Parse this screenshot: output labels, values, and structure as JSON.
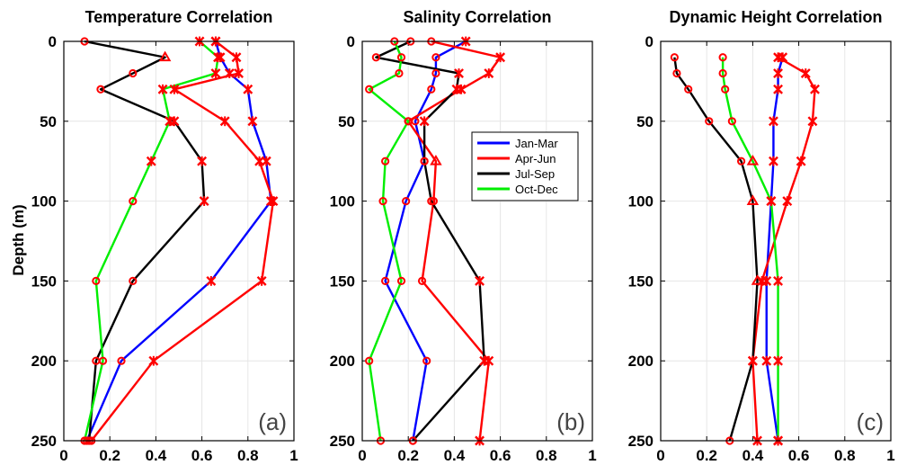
{
  "ylabel": "Depth (m)",
  "marker_legend_note": "",
  "chart_data": [
    {
      "type": "line",
      "title": "Temperature Correlation",
      "panel_label": "(a)",
      "xlim": [
        0,
        1
      ],
      "ylim": [
        250,
        0
      ],
      "xticks": [
        "0",
        "0.2",
        "0.4",
        "0.6",
        "0.8",
        "1"
      ],
      "yticks": [
        "0",
        "50",
        "100",
        "150",
        "200",
        "250"
      ],
      "ytick_values": [
        0,
        50,
        100,
        150,
        200,
        250
      ],
      "xtick_values": [
        0,
        0.2,
        0.4,
        0.6,
        0.8,
        1
      ],
      "grid": true,
      "series": [
        {
          "name": "Jan-Mar",
          "color": "#0000ff",
          "points": [
            [
              0.66,
              0,
              "x"
            ],
            [
              0.68,
              10,
              "x"
            ],
            [
              0.72,
              20,
              "x"
            ],
            [
              0.8,
              30,
              "x"
            ],
            [
              0.82,
              50,
              "x"
            ],
            [
              0.88,
              75,
              "x"
            ],
            [
              0.9,
              100,
              "x"
            ],
            [
              0.64,
              150,
              "x"
            ],
            [
              0.25,
              200,
              "o"
            ],
            [
              0.1,
              250,
              "o"
            ]
          ]
        },
        {
          "name": "Apr-Jun",
          "color": "#ff0000",
          "points": [
            [
              0.66,
              0,
              "x"
            ],
            [
              0.75,
              10,
              "x"
            ],
            [
              0.76,
              20,
              "x"
            ],
            [
              0.48,
              30,
              "x"
            ],
            [
              0.7,
              50,
              "x"
            ],
            [
              0.85,
              75,
              "x"
            ],
            [
              0.91,
              100,
              "x"
            ],
            [
              0.86,
              150,
              "x"
            ],
            [
              0.39,
              200,
              "x"
            ],
            [
              0.12,
              250,
              "o"
            ]
          ]
        },
        {
          "name": "Jul-Sep",
          "color": "#000000",
          "points": [
            [
              0.09,
              0,
              "o"
            ],
            [
              0.44,
              10,
              "^"
            ],
            [
              0.3,
              20,
              "o"
            ],
            [
              0.16,
              30,
              "o"
            ],
            [
              0.48,
              50,
              "x"
            ],
            [
              0.6,
              75,
              "x"
            ],
            [
              0.61,
              100,
              "x"
            ],
            [
              0.3,
              150,
              "o"
            ],
            [
              0.14,
              200,
              "o"
            ],
            [
              0.11,
              250,
              "o"
            ]
          ]
        },
        {
          "name": "Oct-Dec",
          "color": "#00ee00",
          "points": [
            [
              0.59,
              0,
              "x"
            ],
            [
              0.67,
              10,
              "x"
            ],
            [
              0.66,
              20,
              "x"
            ],
            [
              0.43,
              30,
              "x"
            ],
            [
              0.46,
              50,
              "x"
            ],
            [
              0.38,
              75,
              "x"
            ],
            [
              0.3,
              100,
              "o"
            ],
            [
              0.14,
              150,
              "o"
            ],
            [
              0.17,
              200,
              "o"
            ],
            [
              0.09,
              250,
              "o"
            ]
          ]
        }
      ]
    },
    {
      "type": "line",
      "title": "Salinity Correlation",
      "panel_label": "(b)",
      "xlim": [
        0,
        1
      ],
      "ylim": [
        250,
        0
      ],
      "xticks": [
        "0",
        "0.2",
        "0.4",
        "0.6",
        "0.8",
        "1"
      ],
      "yticks": [
        "0",
        "50",
        "100",
        "150",
        "200",
        "250"
      ],
      "ytick_values": [
        0,
        50,
        100,
        150,
        200,
        250
      ],
      "xtick_values": [
        0,
        0.2,
        0.4,
        0.6,
        0.8,
        1
      ],
      "grid": true,
      "legend": {
        "placement": "center-right",
        "entries": [
          "Jan-Mar",
          "Apr-Jun",
          "Jul-Sep",
          "Oct-Dec"
        ]
      },
      "series": [
        {
          "name": "Jan-Mar",
          "color": "#0000ff",
          "points": [
            [
              0.45,
              0,
              "x"
            ],
            [
              0.32,
              10,
              "o"
            ],
            [
              0.32,
              20,
              "o"
            ],
            [
              0.3,
              30,
              "o"
            ],
            [
              0.23,
              50,
              "o"
            ],
            [
              0.27,
              75,
              "o"
            ],
            [
              0.19,
              100,
              "o"
            ],
            [
              0.1,
              150,
              "o"
            ],
            [
              0.28,
              200,
              "o"
            ],
            [
              0.22,
              250,
              "o"
            ]
          ]
        },
        {
          "name": "Apr-Jun",
          "color": "#ff0000",
          "points": [
            [
              0.3,
              0,
              "o"
            ],
            [
              0.6,
              10,
              "x"
            ],
            [
              0.55,
              20,
              "x"
            ],
            [
              0.43,
              30,
              "x"
            ],
            [
              0.2,
              50,
              "o"
            ],
            [
              0.32,
              75,
              "^"
            ],
            [
              0.31,
              100,
              "o"
            ],
            [
              0.26,
              150,
              "o"
            ],
            [
              0.55,
              200,
              "x"
            ],
            [
              0.51,
              250,
              "x"
            ]
          ]
        },
        {
          "name": "Jul-Sep",
          "color": "#000000",
          "points": [
            [
              0.21,
              0,
              "o"
            ],
            [
              0.06,
              10,
              "o"
            ],
            [
              0.42,
              20,
              "x"
            ],
            [
              0.41,
              30,
              "x"
            ],
            [
              0.27,
              50,
              "x"
            ],
            [
              0.27,
              75,
              "o"
            ],
            [
              0.3,
              100,
              "o"
            ],
            [
              0.51,
              150,
              "x"
            ],
            [
              0.53,
              200,
              "x"
            ],
            [
              0.22,
              250,
              "o"
            ]
          ]
        },
        {
          "name": "Oct-Dec",
          "color": "#00ee00",
          "points": [
            [
              0.14,
              0,
              "o"
            ],
            [
              0.17,
              10,
              "o"
            ],
            [
              0.16,
              20,
              "o"
            ],
            [
              0.03,
              30,
              "o"
            ],
            [
              0.2,
              50,
              "o"
            ],
            [
              0.1,
              75,
              "o"
            ],
            [
              0.09,
              100,
              "o"
            ],
            [
              0.17,
              150,
              "o"
            ],
            [
              0.03,
              200,
              "o"
            ],
            [
              0.08,
              250,
              "o"
            ]
          ]
        }
      ]
    },
    {
      "type": "line",
      "title": "Dynamic Height Correlation",
      "panel_label": "(c)",
      "xlim": [
        0,
        1
      ],
      "ylim": [
        250,
        0
      ],
      "xticks": [
        "0",
        "0.2",
        "0.4",
        "0.6",
        "0.8",
        "1"
      ],
      "yticks": [
        "0",
        "50",
        "100",
        "150",
        "200",
        "250"
      ],
      "ytick_values": [
        0,
        50,
        100,
        150,
        200,
        250
      ],
      "xtick_values": [
        0,
        0.2,
        0.4,
        0.6,
        0.8,
        1
      ],
      "grid": true,
      "series": [
        {
          "name": "Jan-Mar",
          "color": "#0000ff",
          "points": [
            [
              0.53,
              10,
              "x"
            ],
            [
              0.51,
              20,
              "x"
            ],
            [
              0.51,
              30,
              "x"
            ],
            [
              0.49,
              50,
              "x"
            ],
            [
              0.49,
              75,
              "x"
            ],
            [
              0.48,
              100,
              "x"
            ],
            [
              0.46,
              150,
              "x"
            ],
            [
              0.46,
              200,
              "x"
            ],
            [
              0.51,
              250,
              "x"
            ]
          ]
        },
        {
          "name": "Apr-Jun",
          "color": "#ff0000",
          "points": [
            [
              0.51,
              10,
              "x"
            ],
            [
              0.63,
              20,
              "x"
            ],
            [
              0.67,
              30,
              "x"
            ],
            [
              0.66,
              50,
              "x"
            ],
            [
              0.61,
              75,
              "x"
            ],
            [
              0.55,
              100,
              "x"
            ],
            [
              0.44,
              150,
              "x"
            ],
            [
              0.4,
              200,
              "x"
            ],
            [
              0.42,
              250,
              "x"
            ]
          ]
        },
        {
          "name": "Jul-Sep",
          "color": "#000000",
          "points": [
            [
              0.06,
              10,
              "o"
            ],
            [
              0.07,
              20,
              "o"
            ],
            [
              0.12,
              30,
              "o"
            ],
            [
              0.21,
              50,
              "o"
            ],
            [
              0.35,
              75,
              "o"
            ],
            [
              0.4,
              100,
              "^"
            ],
            [
              0.42,
              150,
              "^"
            ],
            [
              0.4,
              200,
              "x"
            ],
            [
              0.3,
              250,
              "o"
            ]
          ]
        },
        {
          "name": "Oct-Dec",
          "color": "#00ee00",
          "points": [
            [
              0.27,
              10,
              "o"
            ],
            [
              0.27,
              20,
              "o"
            ],
            [
              0.28,
              30,
              "o"
            ],
            [
              0.31,
              50,
              "o"
            ],
            [
              0.4,
              75,
              "^"
            ],
            [
              0.48,
              100,
              "x"
            ],
            [
              0.51,
              150,
              "x"
            ],
            [
              0.51,
              200,
              "x"
            ],
            [
              0.51,
              250,
              "x"
            ]
          ]
        }
      ]
    }
  ]
}
